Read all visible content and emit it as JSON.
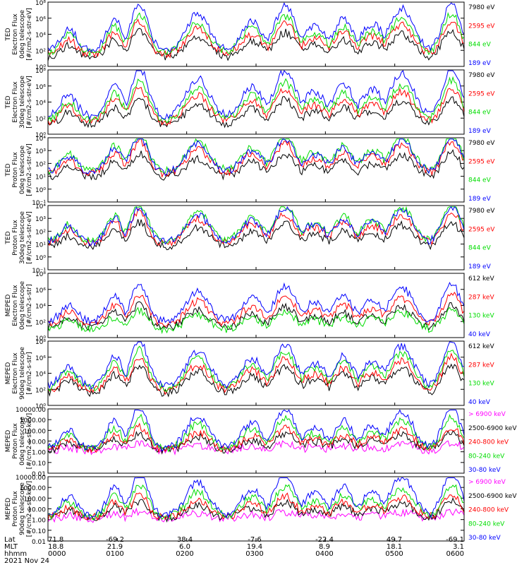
{
  "footer": {
    "row_labels": [
      "Lat",
      "MLT",
      "hhmm",
      "2021 Nov 24"
    ],
    "columns": [
      {
        "lat": "71.8",
        "mlt": "18.8",
        "hhmm": "0000"
      },
      {
        "lat": "-69.2",
        "mlt": "21.9",
        "hhmm": "0100"
      },
      {
        "lat": "38.4",
        "mlt": "6.0",
        "hhmm": "0200"
      },
      {
        "lat": "-7.6",
        "mlt": "19.4",
        "hhmm": "0300"
      },
      {
        "lat": "-22.4",
        "mlt": "8.9",
        "hhmm": "0400"
      },
      {
        "lat": "49.7",
        "mlt": "18.1",
        "hhmm": "0500"
      },
      {
        "lat": "-69.1",
        "mlt": "3.1",
        "hhmm": "0600"
      }
    ]
  },
  "colors": {
    "black": "#000000",
    "red": "#ff0000",
    "green": "#00dd00",
    "blue": "#0000ff",
    "magenta": "#ff00ff"
  },
  "chart_data": [
    {
      "type": "line",
      "ylabel": [
        "TED",
        "Electron Flux",
        "0deg telescope",
        "[#/cm2-s-str-eV]"
      ],
      "y_ticks": [
        "10⁰",
        "10²",
        "10⁴",
        "10⁶",
        "10⁸"
      ],
      "log_ylim": [
        0,
        8
      ],
      "base_log": 1.6,
      "x_range_hhmm": [
        "0000",
        "0600"
      ],
      "series": [
        {
          "name": "7980 eV",
          "color": "#000000",
          "scale": 0.7
        },
        {
          "name": "2595 eV",
          "color": "#ff0000",
          "scale": 0.9
        },
        {
          "name": "844 eV",
          "color": "#00dd00",
          "scale": 1.05
        },
        {
          "name": "189 eV",
          "color": "#0000ff",
          "scale": 1.25
        }
      ]
    },
    {
      "type": "line",
      "ylabel": [
        "TED",
        "Electron Flux",
        "30deg telescope",
        "[#/cm2-s-str-eV]"
      ],
      "y_ticks": [
        "10⁰",
        "10²",
        "10⁴",
        "10⁶",
        "10⁸"
      ],
      "log_ylim": [
        0,
        8
      ],
      "base_log": 1.7,
      "x_range_hhmm": [
        "0000",
        "0600"
      ],
      "series": [
        {
          "name": "7980 eV",
          "color": "#000000",
          "scale": 0.7
        },
        {
          "name": "2595 eV",
          "color": "#ff0000",
          "scale": 0.9
        },
        {
          "name": "844 eV",
          "color": "#00dd00",
          "scale": 1.05
        },
        {
          "name": "189 eV",
          "color": "#0000ff",
          "scale": 1.3
        }
      ]
    },
    {
      "type": "line",
      "ylabel": [
        "TED",
        "Proton Flux",
        "0deg telescope",
        "[#/cm2-s-str-eV]"
      ],
      "y_ticks": [
        "10⁻¹",
        "10⁰",
        "10¹",
        "10²",
        "10³",
        "10⁴"
      ],
      "log_ylim": [
        -1,
        4
      ],
      "base_log": 1.4,
      "x_range_hhmm": [
        "0000",
        "0600"
      ],
      "series": [
        {
          "name": "7980 eV",
          "color": "#000000",
          "scale": 0.65
        },
        {
          "name": "2595 eV",
          "color": "#ff0000",
          "scale": 0.85
        },
        {
          "name": "844 eV",
          "color": "#00dd00",
          "scale": 1.0
        },
        {
          "name": "189 eV",
          "color": "#0000ff",
          "scale": 0.95
        }
      ]
    },
    {
      "type": "line",
      "ylabel": [
        "TED",
        "Proton Flux",
        "30deg telescope",
        "[#/cm2-s-str-eV]"
      ],
      "y_ticks": [
        "10⁻¹",
        "10⁰",
        "10¹",
        "10²",
        "10³",
        "10⁴"
      ],
      "log_ylim": [
        -1,
        4
      ],
      "base_log": 1.2,
      "x_range_hhmm": [
        "0000",
        "0600"
      ],
      "series": [
        {
          "name": "7980 eV",
          "color": "#000000",
          "scale": 0.65
        },
        {
          "name": "2595 eV",
          "color": "#ff0000",
          "scale": 0.85
        },
        {
          "name": "844 eV",
          "color": "#00dd00",
          "scale": 1.0
        },
        {
          "name": "189 eV",
          "color": "#0000ff",
          "scale": 0.95
        }
      ]
    },
    {
      "type": "line",
      "ylabel": [
        "MEPED",
        "Electron Flux",
        "0deg telescope",
        "[#/cm2-s-str]"
      ],
      "y_ticks": [
        "10⁰",
        "10²",
        "10⁴",
        "10⁶",
        "10⁸"
      ],
      "log_ylim": [
        0,
        8
      ],
      "base_log": 2.0,
      "x_range_hhmm": [
        "0000",
        "0600"
      ],
      "series": [
        {
          "name": "612 keV",
          "color": "#000000",
          "scale": 0.6
        },
        {
          "name": "287 keV",
          "color": "#ff0000",
          "scale": 0.8
        },
        {
          "name": "130 keV",
          "color": "#00dd00",
          "scale": 0.5
        },
        {
          "name": "40 keV",
          "color": "#0000ff",
          "scale": 1.0
        }
      ]
    },
    {
      "type": "line",
      "ylabel": [
        "MEPED",
        "Electron Flux",
        "90deg telescope",
        "[#/cm2-s-str]"
      ],
      "y_ticks": [
        "10⁰",
        "10²",
        "10⁴",
        "10⁶",
        "10⁸"
      ],
      "log_ylim": [
        0,
        8
      ],
      "base_log": 2.0,
      "x_range_hhmm": [
        "0000",
        "0600"
      ],
      "series": [
        {
          "name": "612 keV",
          "color": "#000000",
          "scale": 0.75
        },
        {
          "name": "287 keV",
          "color": "#ff0000",
          "scale": 0.9
        },
        {
          "name": "130 keV",
          "color": "#00dd00",
          "scale": 1.05
        },
        {
          "name": "40 keV",
          "color": "#0000ff",
          "scale": 1.2
        }
      ]
    },
    {
      "type": "line",
      "ylabel": [
        "MEPED",
        "Proton Flux",
        "0deg telescope",
        "[#/cm2-s-str-keV]"
      ],
      "y_ticks": [
        "0.01",
        "0.10",
        "1.00",
        "10.00",
        "100.00",
        "1000.00",
        "10000.00"
      ],
      "log_ylim": [
        -2,
        4
      ],
      "base_log": 0.3,
      "x_range_hhmm": [
        "0000",
        "0600"
      ],
      "series": [
        {
          "name": "> 6900 keV",
          "color": "#ff00ff",
          "scale": 0.2
        },
        {
          "name": "2500-6900 keV",
          "color": "#000000",
          "scale": 0.45
        },
        {
          "name": "240-800 keV",
          "color": "#ff0000",
          "scale": 0.6
        },
        {
          "name": "80-240 keV",
          "color": "#00dd00",
          "scale": 0.85
        },
        {
          "name": "30-80 keV",
          "color": "#0000ff",
          "scale": 1.1
        }
      ]
    },
    {
      "type": "line",
      "ylabel": [
        "MEPED",
        "Proton Flux",
        "90deg telescope",
        "[#/cm2-s-str-keV]"
      ],
      "y_ticks": [
        "0.01",
        "0.10",
        "1.00",
        "10.00",
        "100.00",
        "1000.00",
        "10000.00"
      ],
      "log_ylim": [
        -2,
        4
      ],
      "base_log": 0.3,
      "x_range_hhmm": [
        "0000",
        "0600"
      ],
      "series": [
        {
          "name": "> 6900 keV",
          "color": "#ff00ff",
          "scale": 0.2
        },
        {
          "name": "2500-6900 keV",
          "color": "#000000",
          "scale": 0.45
        },
        {
          "name": "240-800 keV",
          "color": "#ff0000",
          "scale": 0.6
        },
        {
          "name": "80-240 keV",
          "color": "#00dd00",
          "scale": 0.85
        },
        {
          "name": "30-80 keV",
          "color": "#0000ff",
          "scale": 1.15
        }
      ]
    }
  ]
}
